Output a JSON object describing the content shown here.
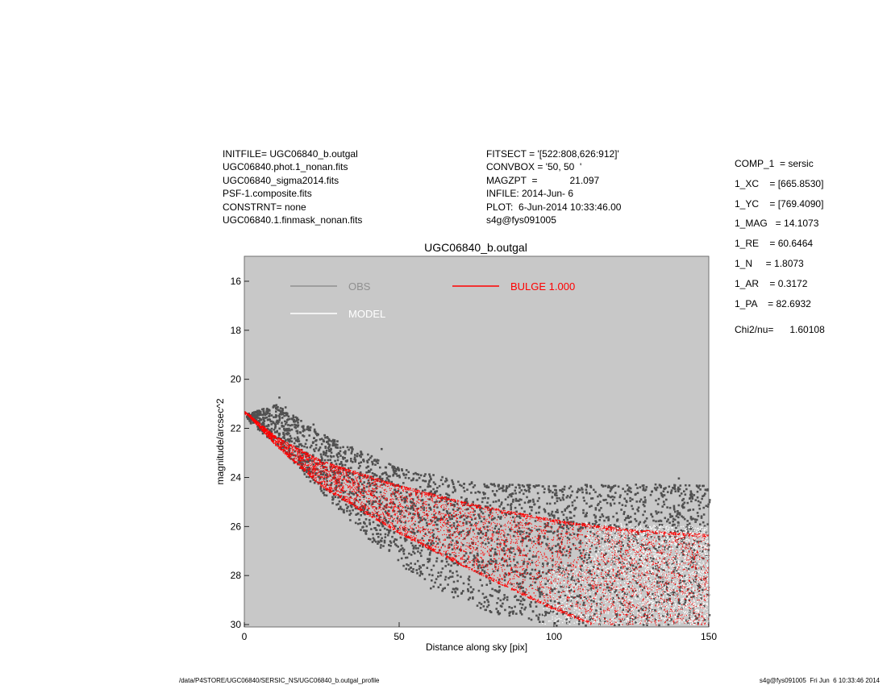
{
  "header": {
    "left": [
      "INITFILE= UGC06840_b.outgal",
      "UGC06840.phot.1_nonan.fits",
      "UGC06840_sigma2014.fits",
      "PSF-1.composite.fits",
      "CONSTRNT= none",
      "UGC06840.1.finmask_nonan.fits"
    ],
    "middle": [
      "FITSECT = '[522:808,626:912]'",
      "CONVBOX = '50, 50  '",
      "MAGZPT  =            21.097",
      "INFILE: 2014-Jun- 6",
      "PLOT:  6-Jun-2014 10:33:46.00",
      "s4g@fys091005"
    ]
  },
  "components": [
    "COMP_1  = sersic",
    "1_XC    = [665.8530]",
    "1_YC    = [769.4090]",
    "1_MAG   = 14.1073",
    "1_RE    = 60.6464",
    "1_N     = 1.8073",
    "1_AR    = 0.3172",
    "1_PA    = 82.6932"
  ],
  "chi2": "Chi2/nu=      1.60108",
  "footer": {
    "path": "/data/P4STORE/UGC06840/SERSIC_NS/UGC06840_b.outgal_profile",
    "stamp": "s4g@fys091005  Fri Jun  6 10:33:46 2014"
  },
  "colors": {
    "plot_bg": "#c8c8c8",
    "obs": "#505050",
    "model": "#ffffff",
    "bulge": "#ff0000"
  },
  "chart_data": {
    "type": "scatter",
    "title": "UGC06840_b.outgal",
    "xlabel": "Distance along sky [pix]",
    "ylabel": "magnitude/arcsec^2",
    "xlim": [
      0,
      150
    ],
    "ylim": [
      30,
      15
    ],
    "y_inverted": true,
    "xticks": [
      0,
      50,
      100,
      150
    ],
    "yticks": [
      16,
      18,
      20,
      22,
      24,
      26,
      28,
      30
    ],
    "legend": [
      {
        "name": "OBS",
        "color": "#909090"
      },
      {
        "name": "MODEL",
        "color": "#ffffff"
      },
      {
        "name": "BULGE  1.000",
        "color": "#ff0000"
      }
    ],
    "legend_position": "top",
    "series": [
      {
        "name": "OBS",
        "style": "points",
        "envelope_upper": [
          [
            0,
            21.4
          ],
          [
            10,
            21.0
          ],
          [
            25,
            22.2
          ],
          [
            50,
            23.6
          ],
          [
            75,
            24.2
          ],
          [
            100,
            24.3
          ],
          [
            125,
            24.2
          ],
          [
            150,
            24.3
          ]
        ],
        "envelope_lower": [
          [
            0,
            21.6
          ],
          [
            10,
            22.6
          ],
          [
            20,
            24.0
          ],
          [
            40,
            26.5
          ],
          [
            60,
            28.5
          ],
          [
            80,
            29.5
          ],
          [
            100,
            30.0
          ]
        ]
      },
      {
        "name": "MODEL",
        "style": "points",
        "envelope_upper": [
          [
            110,
            25.8
          ],
          [
            130,
            25.9
          ],
          [
            150,
            26.0
          ]
        ],
        "envelope_lower": [
          [
            110,
            30.0
          ],
          [
            130,
            30.0
          ],
          [
            150,
            30.0
          ]
        ]
      },
      {
        "name": "BULGE  1.000",
        "style": "points",
        "upper_edge": [
          [
            0,
            21.3
          ],
          [
            10,
            22.3
          ],
          [
            25,
            23.3
          ],
          [
            50,
            24.3
          ],
          [
            75,
            25.1
          ],
          [
            100,
            25.7
          ],
          [
            125,
            26.1
          ],
          [
            150,
            26.3
          ]
        ],
        "lower_edge": [
          [
            0,
            21.3
          ],
          [
            10,
            22.7
          ],
          [
            25,
            24.4
          ],
          [
            50,
            26.3
          ],
          [
            75,
            27.9
          ],
          [
            100,
            29.4
          ],
          [
            112,
            30.0
          ]
        ]
      }
    ]
  }
}
